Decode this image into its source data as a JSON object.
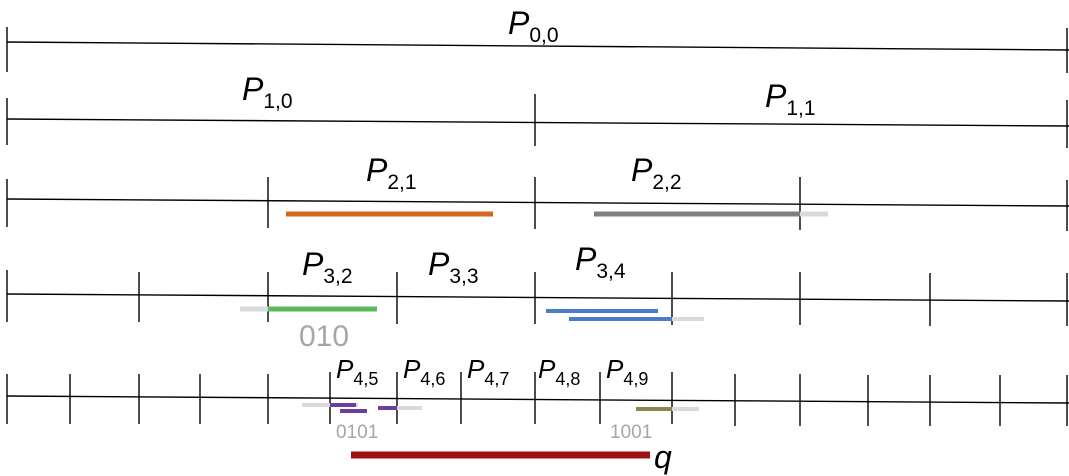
{
  "levels": [
    {
      "id": "0",
      "labels": [
        {
          "name": "P",
          "sub": "0,0"
        }
      ]
    },
    {
      "id": "1",
      "labels": [
        {
          "name": "P",
          "sub": "1,0"
        },
        {
          "name": "P",
          "sub": "1,1"
        }
      ]
    },
    {
      "id": "2",
      "labels": [
        {
          "name": "P",
          "sub": "2,1"
        },
        {
          "name": "P",
          "sub": "2,2"
        }
      ]
    },
    {
      "id": "3",
      "labels": [
        {
          "name": "P",
          "sub": "3,2"
        },
        {
          "name": "P",
          "sub": "3,3"
        },
        {
          "name": "P",
          "sub": "3,4"
        }
      ]
    },
    {
      "id": "4",
      "labels": [
        {
          "name": "P",
          "sub": "4,5"
        },
        {
          "name": "P",
          "sub": "4,6"
        },
        {
          "name": "P",
          "sub": "4,7"
        },
        {
          "name": "P",
          "sub": "4,8"
        },
        {
          "name": "P",
          "sub": "4,9"
        }
      ]
    }
  ],
  "codes": {
    "level3": "010",
    "level4_left": "0101",
    "level4_right": "1001"
  },
  "query_label": "q",
  "colors": {
    "orange": "#d2691e",
    "gray": "#808080",
    "light_gray": "#d9d9d9",
    "green": "#5cb85c",
    "blue": "#4a7ec8",
    "purple": "#6a3fa0",
    "olive": "#8b8455",
    "red": "#a01010",
    "code_text": "#a6a6a6"
  }
}
